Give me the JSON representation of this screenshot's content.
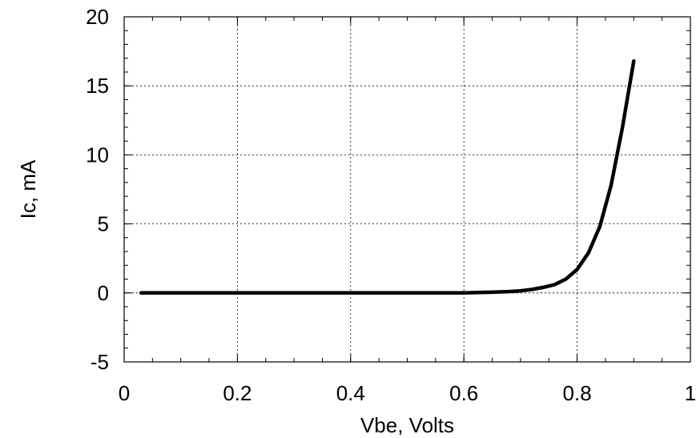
{
  "chart_data": {
    "type": "line",
    "title": "",
    "xlabel": "Vbe, Volts",
    "ylabel": "Ic, mA",
    "xlim": [
      0,
      1
    ],
    "ylim": [
      -5,
      20
    ],
    "grid": true,
    "x_ticks": [
      0,
      0.2,
      0.4,
      0.6,
      0.8,
      1
    ],
    "x_tick_labels": [
      "0",
      "0.2",
      "0.4",
      "0.6",
      "0.8",
      "1"
    ],
    "y_ticks": [
      -5,
      0,
      5,
      10,
      15,
      20
    ],
    "y_tick_labels": [
      "-5",
      "0",
      "5",
      "10",
      "15",
      "20"
    ],
    "series": [
      {
        "x": [
          0.03,
          0.1,
          0.2,
          0.3,
          0.4,
          0.5,
          0.6,
          0.65,
          0.68,
          0.7,
          0.72,
          0.74,
          0.76,
          0.78,
          0.8,
          0.82,
          0.84,
          0.86,
          0.88,
          0.9
        ],
        "y": [
          0,
          0,
          0,
          0,
          0,
          0,
          0,
          0.05,
          0.1,
          0.15,
          0.25,
          0.4,
          0.6,
          1.0,
          1.7,
          2.9,
          4.8,
          7.8,
          12.0,
          16.8
        ]
      }
    ]
  }
}
